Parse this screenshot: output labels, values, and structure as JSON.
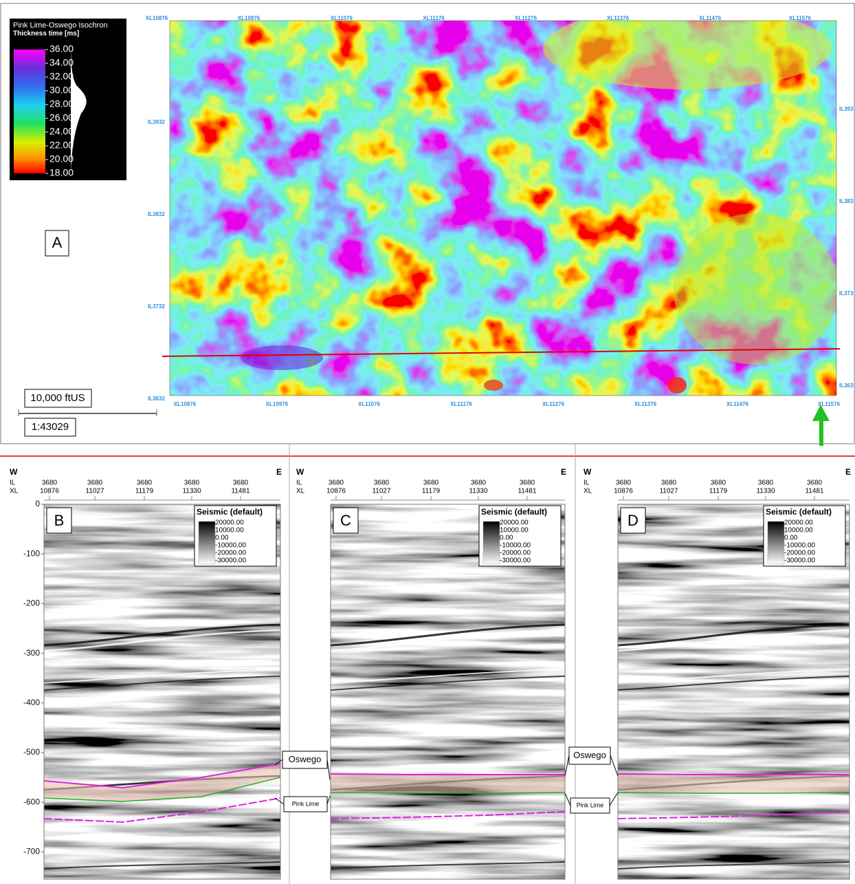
{
  "map": {
    "panel_label": "A",
    "legend": {
      "title": "Pink Lime-Oswego Isochron",
      "subtitle": "Thickness time [ms]",
      "ticks": [
        "36.00",
        "34.00",
        "32.00",
        "30.00",
        "28.00",
        "26.00",
        "24.00",
        "22.00",
        "20.00",
        "18.00"
      ]
    },
    "top_labels": [
      "XL10876",
      "XL10976",
      "XL11076",
      "XL11176",
      "XL11276",
      "XL11376",
      "XL11476",
      "XL11576"
    ],
    "bottom_labels": [
      "XL10876",
      "XL10976",
      "XL11076",
      "XL11176",
      "XL11276",
      "XL11376",
      "XL11476",
      "XL11576"
    ],
    "left_labels": [
      "IL3932",
      "IL3832",
      "IL3732",
      "IL3632"
    ],
    "right_labels": [
      "IL393",
      "IL383",
      "IL373",
      "IL363"
    ],
    "scale_length": "10,000 ftUS",
    "scale_ratio": "1:43029"
  },
  "sections": [
    {
      "label": "B",
      "west": "W",
      "east": "E",
      "il_label": "IL",
      "xl_label": "XL",
      "columns": [
        {
          "il": "3680",
          "xl": "10876"
        },
        {
          "il": "3680",
          "xl": "11027"
        },
        {
          "il": "3680",
          "xl": "11179"
        },
        {
          "il": "3680",
          "xl": "11330"
        },
        {
          "il": "3680",
          "xl": "11481"
        }
      ],
      "legend": {
        "title": "Seismic (default)",
        "values": [
          "20000.00",
          "10000.00",
          "0.00",
          "-10000.00",
          "-20000.00",
          "-30000.00"
        ]
      },
      "depth_ticks": [
        "0",
        "-100",
        "-200",
        "-300",
        "-400",
        "-500",
        "-600",
        "-700"
      ]
    },
    {
      "label": "C",
      "west": "W",
      "east": "E",
      "il_label": "IL",
      "xl_label": "XL",
      "columns": [
        {
          "il": "3680",
          "xl": "10876"
        },
        {
          "il": "3680",
          "xl": "11027"
        },
        {
          "il": "3680",
          "xl": "11179"
        },
        {
          "il": "3680",
          "xl": "11330"
        },
        {
          "il": "3680",
          "xl": "11481"
        }
      ],
      "legend": {
        "title": "Seismic (default)",
        "values": [
          "20000.00",
          "10000.00",
          "0.00",
          "-10000.00",
          "-20000.00",
          "-30000.00"
        ]
      }
    },
    {
      "label": "D",
      "west": "W",
      "east": "E",
      "il_label": "IL",
      "xl_label": "XL",
      "columns": [
        {
          "il": "3680",
          "xl": "10876"
        },
        {
          "il": "3680",
          "xl": "11027"
        },
        {
          "il": "3680",
          "xl": "11179"
        },
        {
          "il": "3680",
          "xl": "11330"
        },
        {
          "il": "3680",
          "xl": "11481"
        }
      ],
      "legend": {
        "title": "Seismic (default)",
        "values": [
          "20000.00",
          "10000.00",
          "0.00",
          "-10000.00",
          "-20000.00",
          "-30000.00"
        ]
      }
    }
  ],
  "annotations": [
    {
      "oswego": "Oswego",
      "pink_lime": "Pink Lime"
    },
    {
      "oswego": "Oswego",
      "pink_lime": "Pink Lime"
    }
  ]
}
